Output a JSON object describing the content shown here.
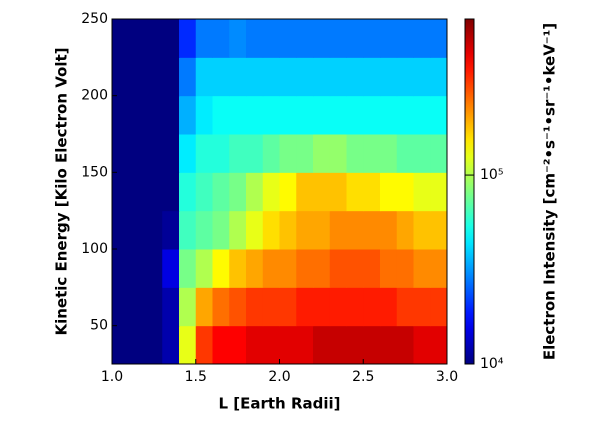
{
  "chart_data": {
    "type": "heatmap",
    "xlabel": "L [Earth Radii]",
    "ylabel": "Kinetic Energy [Kilo Electron Volt]",
    "colorbar_label": "Electron Intensity [cm⁻²•s⁻¹•sr⁻¹•keV⁻¹]",
    "colormap": "jet",
    "color_log": true,
    "x_bins": [
      1.0,
      1.1,
      1.2,
      1.3,
      1.4,
      1.5,
      1.6,
      1.7,
      1.8,
      1.9,
      2.0,
      2.1,
      2.2,
      2.3,
      2.4,
      2.5,
      2.6,
      2.7,
      2.8,
      2.9,
      3.0
    ],
    "y_bins": [
      25,
      50,
      75,
      100,
      125,
      150,
      175,
      200,
      225,
      250
    ],
    "z": [
      [
        10000,
        10000,
        10000,
        12000,
        126000,
        316000,
        398000,
        398000,
        447000,
        447000,
        447000,
        447000,
        500000,
        500000,
        500000,
        500000,
        500000,
        500000,
        447000,
        447000
      ],
      [
        10000,
        10000,
        10000,
        12000,
        100000,
        200000,
        251000,
        282000,
        316000,
        316000,
        316000,
        355000,
        355000,
        355000,
        355000,
        355000,
        355000,
        316000,
        316000,
        316000
      ],
      [
        10000,
        10000,
        10000,
        15000,
        79000,
        100000,
        141000,
        178000,
        200000,
        224000,
        224000,
        251000,
        251000,
        282000,
        282000,
        282000,
        251000,
        251000,
        224000,
        224000
      ],
      [
        10000,
        10000,
        10000,
        11000,
        63000,
        71000,
        79000,
        100000,
        126000,
        158000,
        178000,
        200000,
        200000,
        224000,
        224000,
        224000,
        224000,
        200000,
        178000,
        178000
      ],
      [
        10000,
        10000,
        10000,
        10000,
        56000,
        63000,
        71000,
        79000,
        100000,
        126000,
        141000,
        178000,
        178000,
        178000,
        158000,
        158000,
        141000,
        141000,
        126000,
        126000
      ],
      [
        10000,
        10000,
        10000,
        10000,
        45000,
        56000,
        56000,
        63000,
        63000,
        71000,
        79000,
        79000,
        89000,
        89000,
        79000,
        79000,
        79000,
        71000,
        71000,
        71000
      ],
      [
        10000,
        10000,
        10000,
        10000,
        35000,
        45000,
        50000,
        50000,
        50000,
        50000,
        50000,
        50000,
        50000,
        50000,
        50000,
        50000,
        50000,
        50000,
        50000,
        50000
      ],
      [
        10000,
        10000,
        10000,
        10000,
        28000,
        40000,
        40000,
        40000,
        40000,
        40000,
        40000,
        40000,
        40000,
        40000,
        40000,
        40000,
        40000,
        40000,
        40000,
        40000
      ],
      [
        10000,
        10000,
        10000,
        10000,
        20000,
        28000,
        28000,
        30000,
        28000,
        28000,
        28000,
        28000,
        28000,
        28000,
        28000,
        28000,
        28000,
        28000,
        28000,
        28000
      ]
    ],
    "xlim": [
      1.0,
      3.0
    ],
    "ylim": [
      25,
      250
    ],
    "clim": [
      10000,
      670000
    ],
    "xticks": [
      {
        "value": 1.0,
        "label": "1.0"
      },
      {
        "value": 1.5,
        "label": "1.5"
      },
      {
        "value": 2.0,
        "label": "2.0"
      },
      {
        "value": 2.5,
        "label": "2.5"
      },
      {
        "value": 3.0,
        "label": "3.0"
      }
    ],
    "yticks": [
      50,
      100,
      150,
      200,
      250
    ],
    "cticks": [
      {
        "value": 10000,
        "label": "10⁴"
      },
      {
        "value": 100000,
        "label": "10⁵"
      }
    ]
  }
}
